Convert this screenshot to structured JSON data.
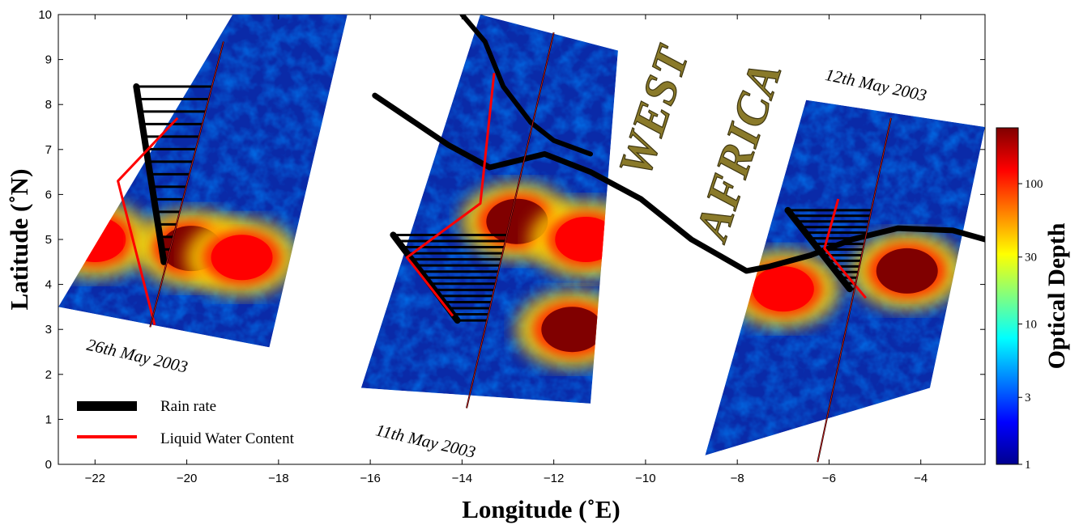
{
  "chart_data": {
    "type": "heatmap",
    "title": "",
    "xlabel": "Longitude (˚E)",
    "ylabel": "Latitude (˚N)",
    "xlim": [
      -22.8,
      -2.6
    ],
    "ylim": [
      0,
      10
    ],
    "xticks": [
      -22,
      -20,
      -18,
      -16,
      -14,
      -12,
      -10,
      -8,
      -6,
      -4
    ],
    "yticks": [
      0,
      1,
      2,
      3,
      4,
      5,
      6,
      7,
      8,
      9,
      10
    ],
    "colorbar": {
      "label_word1": "Optical",
      "label_word2": "Depth",
      "scale": "log",
      "range": [
        1,
        250
      ],
      "ticks": [
        1,
        3,
        10,
        30,
        100
      ],
      "colors": [
        "#00008f",
        "#0000ff",
        "#0080ff",
        "#00ffff",
        "#80ff80",
        "#ffff00",
        "#ff8000",
        "#ff0000",
        "#800000"
      ]
    },
    "swaths": [
      {
        "date": "26th May 2003",
        "corners": [
          [
            -19.0,
            10.0
          ],
          [
            -16.5,
            10.0
          ],
          [
            -18.2,
            2.6
          ],
          [
            -22.8,
            3.5
          ]
        ],
        "flight_track": [
          [
            -20.8,
            3.05
          ],
          [
            -19.2,
            9.4
          ]
        ],
        "rain_rate_track": [
          [
            -21.1,
            8.4
          ],
          [
            -20.5,
            4.5
          ]
        ],
        "lwc_track": [
          [
            -20.2,
            7.7
          ],
          [
            -21.5,
            6.3
          ],
          [
            -20.7,
            3.1
          ]
        ],
        "storm_centers": [
          {
            "lon": -22.0,
            "lat": 5.0,
            "od": 150
          },
          {
            "lon": -19.9,
            "lat": 4.8,
            "od": 200
          },
          {
            "lon": -18.8,
            "lat": 4.6,
            "od": 150
          }
        ]
      },
      {
        "date": "11th May 2003",
        "corners": [
          [
            -13.6,
            10.0
          ],
          [
            -10.6,
            9.2
          ],
          [
            -11.2,
            1.35
          ],
          [
            -16.2,
            1.7
          ]
        ],
        "flight_track": [
          [
            -13.9,
            1.25
          ],
          [
            -12.0,
            9.6
          ]
        ],
        "rain_rate_track": [
          [
            -15.5,
            5.1
          ],
          [
            -14.1,
            3.2
          ]
        ],
        "lwc_track": [
          [
            -13.3,
            8.7
          ],
          [
            -13.6,
            5.8
          ],
          [
            -15.2,
            4.6
          ],
          [
            -14.2,
            3.3
          ]
        ],
        "storm_centers": [
          {
            "lon": -12.8,
            "lat": 5.4,
            "od": 200
          },
          {
            "lon": -11.3,
            "lat": 5.0,
            "od": 150
          },
          {
            "lon": -11.6,
            "lat": 3.0,
            "od": 200
          }
        ]
      },
      {
        "date": "12th May 2003",
        "corners": [
          [
            -6.5,
            8.1
          ],
          [
            -2.6,
            7.5
          ],
          [
            -3.8,
            1.7
          ],
          [
            -8.7,
            0.2
          ]
        ],
        "flight_track": [
          [
            -6.25,
            0.05
          ],
          [
            -4.65,
            7.7
          ]
        ],
        "rain_rate_track": [
          [
            -6.9,
            5.65
          ],
          [
            -5.55,
            3.9
          ]
        ],
        "lwc_track": [
          [
            -5.8,
            5.9
          ],
          [
            -6.1,
            4.8
          ],
          [
            -5.2,
            3.7
          ]
        ],
        "storm_centers": [
          {
            "lon": -4.3,
            "lat": 4.3,
            "od": 250
          },
          {
            "lon": -7.0,
            "lat": 3.9,
            "od": 150
          }
        ]
      }
    ],
    "coastline": [
      [
        -15.9,
        8.2
      ],
      [
        -14.3,
        7.1
      ],
      [
        -13.4,
        6.6
      ],
      [
        -12.2,
        6.9
      ],
      [
        -11.2,
        6.5
      ],
      [
        -10.1,
        5.9
      ],
      [
        -9.0,
        5.0
      ],
      [
        -7.8,
        4.3
      ],
      [
        -7.3,
        4.4
      ],
      [
        -6.4,
        4.65
      ],
      [
        -5.5,
        5.0
      ],
      [
        -4.5,
        5.25
      ],
      [
        -3.3,
        5.2
      ],
      [
        -2.6,
        5.0
      ]
    ],
    "coastline_north": [
      [
        -14.0,
        10.0
      ],
      [
        -13.5,
        9.4
      ],
      [
        -13.1,
        8.4
      ],
      [
        -12.5,
        7.6
      ],
      [
        -12.0,
        7.2
      ],
      [
        -11.2,
        6.9
      ]
    ],
    "legend": [
      {
        "label": "Rain rate",
        "color": "#000000"
      },
      {
        "label": "Liquid Water Content",
        "color": "#ff0000"
      }
    ]
  },
  "map_text": {
    "line1": "WEST",
    "line2": "AFRICA"
  },
  "colors": {
    "text": "#000000",
    "map_text": "#8a7a2a"
  }
}
